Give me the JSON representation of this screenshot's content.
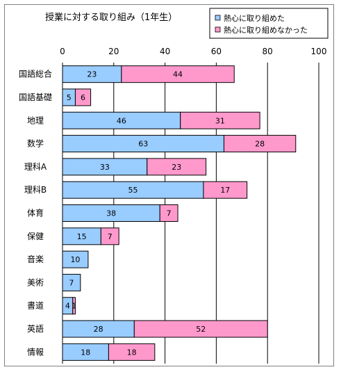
{
  "chart_data": {
    "type": "bar",
    "stacked": true,
    "orientation": "horizontal",
    "title": "授業に対する取り組み（1年生）",
    "categories": [
      "国語総合",
      "国語基礎",
      "地理",
      "数学",
      "理科A",
      "理科B",
      "体育",
      "保健",
      "音楽",
      "美術",
      "書道",
      "英語",
      "情報"
    ],
    "series": [
      {
        "name": "熱心に取り組めた",
        "color": "#99CCFF",
        "values": [
          23,
          5,
          46,
          63,
          33,
          55,
          38,
          15,
          10,
          7,
          4,
          28,
          18
        ]
      },
      {
        "name": "熱心に取り組めなかった",
        "color": "#FF99CC",
        "values": [
          44,
          6,
          31,
          28,
          23,
          17,
          7,
          7,
          0,
          0,
          1,
          52,
          18
        ]
      }
    ],
    "xlim": [
      0,
      100
    ],
    "xticks": [
      0,
      20,
      40,
      60,
      80,
      100
    ],
    "grid": true,
    "legend_position": "top-right"
  }
}
